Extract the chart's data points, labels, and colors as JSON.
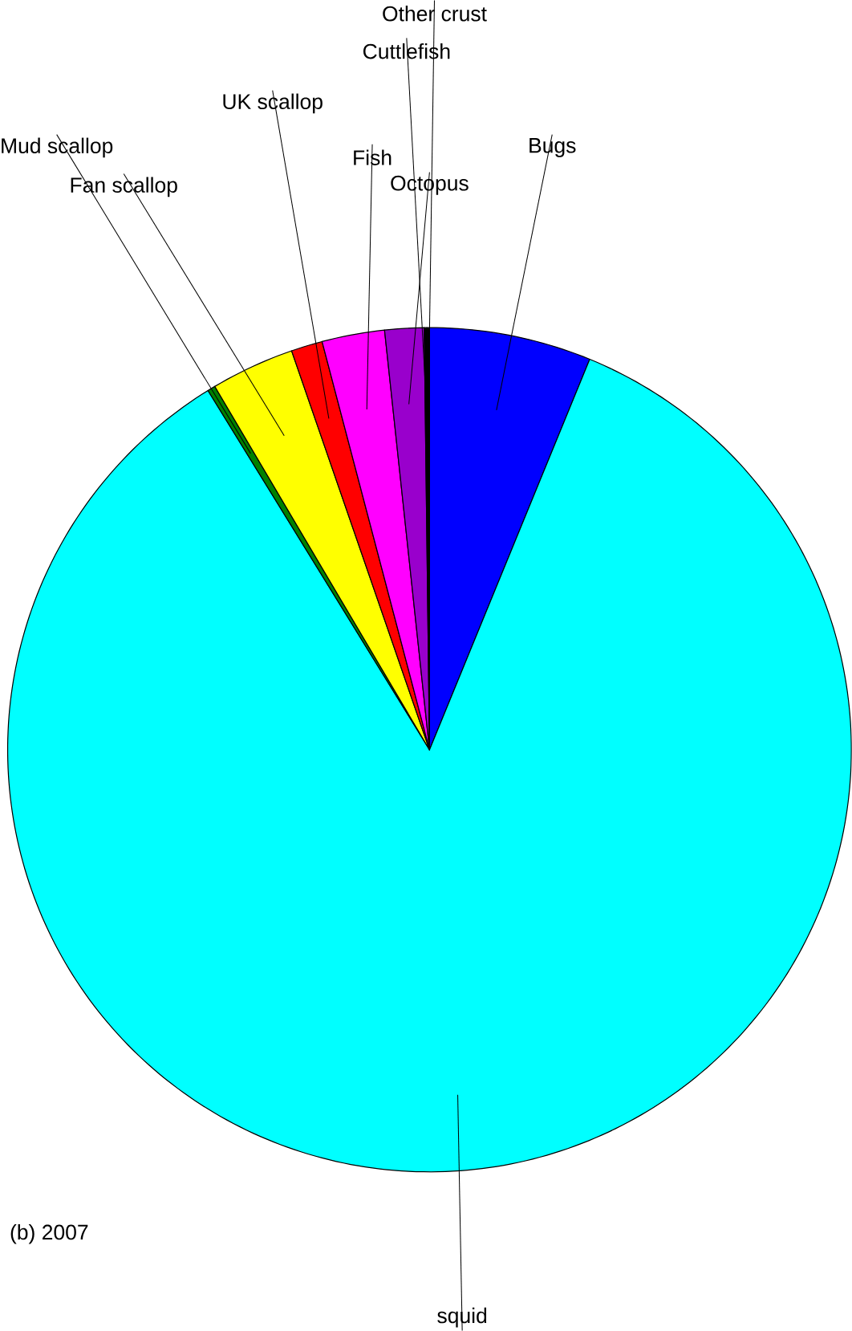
{
  "chart_data": {
    "type": "pie",
    "title": "(b) 2007",
    "categories": [
      "Bugs",
      "squid",
      "Mud scallop",
      "Fan scallop",
      "UK scallop",
      "Fish",
      "Octopus",
      "Cuttlefish",
      "Other crust"
    ],
    "values": [
      6.2,
      85.0,
      0.3,
      3.2,
      1.2,
      2.4,
      1.5,
      0.1,
      0.1
    ],
    "colors": [
      "#0000ff",
      "#00ffff",
      "#008000",
      "#ffff00",
      "#ff0000",
      "#ff00ff",
      "#9900cc",
      "#000000",
      "#000000"
    ]
  }
}
